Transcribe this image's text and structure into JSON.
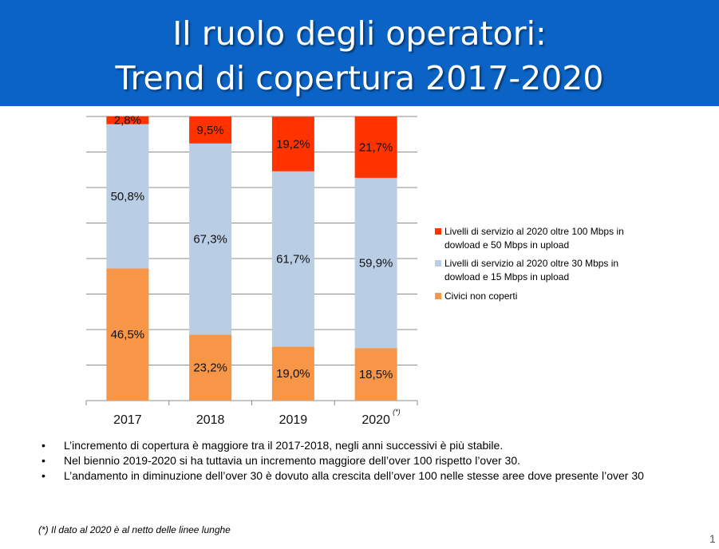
{
  "title": {
    "line1": "Il ruolo degli operatori:",
    "line2": "Trend di copertura 2017-2020"
  },
  "colors": {
    "title_bg": "#0b63c5",
    "over100": "#ff3300",
    "over30": "#b9cde5",
    "civici": "#f79646"
  },
  "chart_data": {
    "type": "bar",
    "stacked": true,
    "categories": [
      "2017",
      "2018",
      "2019",
      "2020"
    ],
    "category_note": {
      "2020": "(*)"
    },
    "ylim": [
      0,
      100
    ],
    "grid": true,
    "legend_position": "right",
    "series": [
      {
        "name": "Civici non coperti",
        "color": "#f79646",
        "values": [
          46.5,
          23.2,
          19.0,
          18.5
        ],
        "labels": [
          "46,5%",
          "23,2%",
          "19,0%",
          "18,5%"
        ]
      },
      {
        "name": "Livelli di servizio al 2020 oltre 30 Mbps in dowload e 15 Mbps in upload",
        "color": "#b9cde5",
        "values": [
          50.8,
          67.3,
          61.7,
          59.9
        ],
        "labels": [
          "50,8%",
          "67,3%",
          "61,7%",
          "59,9%"
        ]
      },
      {
        "name": "Livelli di servizio al 2020 oltre 100 Mbps in dowload e 50 Mbps in upload",
        "color": "#ff3300",
        "values": [
          2.8,
          9.5,
          19.2,
          21.7
        ],
        "labels": [
          "2,8%",
          "9,5%",
          "19,2%",
          "21,7%"
        ]
      }
    ]
  },
  "legend": [
    {
      "label": "Livelli di servizio al 2020 oltre 100 Mbps in dowload e 50 Mbps in upload",
      "color": "#ff3300"
    },
    {
      "label": "Livelli di servizio al 2020 oltre 30 Mbps in dowload e 15 Mbps in upload",
      "color": "#b9cde5"
    },
    {
      "label": "Civici non coperti",
      "color": "#f79646"
    }
  ],
  "bullets": [
    "L’incremento di copertura è maggiore tra il 2017-2018, negli anni successivi è più stabile.",
    "Nel biennio 2019-2020 si ha tuttavia un incremento maggiore dell’over 100  rispetto l’over 30.",
    "L’andamento in diminuzione dell’over 30 è dovuto alla crescita dell’over 100 nelle stesse aree dove presente l’over 30"
  ],
  "bullet_marker": "•",
  "footnote": "(*) Il dato al 2020 è al netto delle linee lunghe",
  "page_number": "1"
}
